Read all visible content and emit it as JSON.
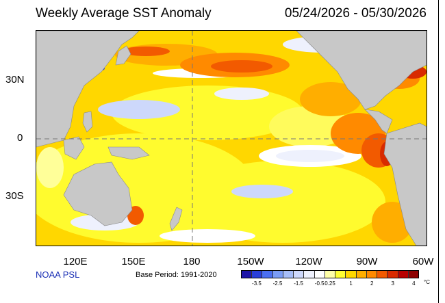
{
  "title": "Weekly Average SST Anomaly",
  "date_range": "05/24/2026 - 05/30/2026",
  "credit": "NOAA PSL",
  "base_period": "Base Period: 1991-2020",
  "lat_labels": [
    "30N",
    "0",
    "30S"
  ],
  "lon_labels": [
    "120E",
    "150E",
    "180",
    "150W",
    "120W",
    "90W",
    "60W"
  ],
  "colorbar": {
    "unit": "°C",
    "tick_labels": [
      "-3.5",
      "-2.5",
      "-1.5",
      "-0.5",
      "0.25",
      "1",
      "2",
      "3",
      "4"
    ],
    "colors": [
      "#1e15a8",
      "#2a3fd9",
      "#4b6ff0",
      "#7a9cf5",
      "#a6bdf7",
      "#cdd8fb",
      "#eef1fd",
      "#ffffff",
      "#ffffa8",
      "#ffff33",
      "#ffd700",
      "#ffae00",
      "#ff8a00",
      "#f25a00",
      "#d82a00",
      "#b80000",
      "#8e0000"
    ]
  },
  "colors": {
    "land": "#c8c8c8",
    "background_anomaly": "#ffd700",
    "credit_text": "#1a2fb5"
  }
}
